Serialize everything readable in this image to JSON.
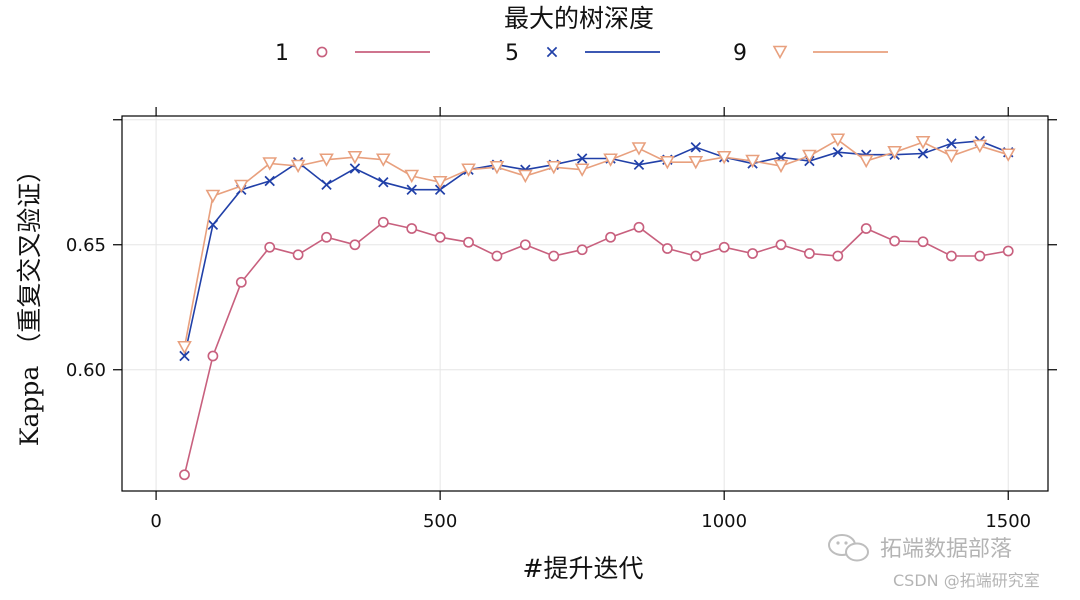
{
  "chart_data": {
    "type": "line",
    "legend": {
      "title": "最大的树深度",
      "placement": "top",
      "entries": [
        {
          "label": "1",
          "marker": "circle",
          "color": "#c8607e"
        },
        {
          "label": "5",
          "marker": "cross",
          "color": "#2140a8"
        },
        {
          "label": "9",
          "marker": "triangle-down",
          "color": "#e8a07e"
        }
      ]
    },
    "xlabel": "#提升迭代",
    "ylabel": "Kappa （重复交叉验证）",
    "xlim": [
      -60,
      1570
    ],
    "ylim": [
      0.5515,
      0.7015
    ],
    "x_ticks": [
      0,
      500,
      1000,
      1500
    ],
    "y_ticks": [
      0.6,
      0.65
    ],
    "x_tick_labels": [
      "0",
      "500",
      "1000",
      "1500"
    ],
    "y_tick_labels": [
      "0.60",
      "0.65"
    ],
    "grid": true,
    "x": [
      50,
      100,
      150,
      200,
      250,
      300,
      350,
      400,
      450,
      500,
      550,
      600,
      650,
      700,
      750,
      800,
      850,
      900,
      950,
      1000,
      1050,
      1100,
      1150,
      1200,
      1250,
      1300,
      1350,
      1400,
      1450,
      1500
    ],
    "series": [
      {
        "name": "1",
        "color": "#c8607e",
        "marker": "circle",
        "values": [
          0.558,
          0.6055,
          0.635,
          0.649,
          0.646,
          0.653,
          0.65,
          0.659,
          0.6565,
          0.653,
          0.651,
          0.6455,
          0.65,
          0.6455,
          0.648,
          0.653,
          0.657,
          0.6485,
          0.6455,
          0.649,
          0.6465,
          0.65,
          0.6465,
          0.6455,
          0.6565,
          0.6515,
          0.6512,
          0.6455,
          0.6455,
          0.6475
        ]
      },
      {
        "name": "5",
        "color": "#2140a8",
        "marker": "cross",
        "values": [
          0.6055,
          0.658,
          0.672,
          0.6755,
          0.683,
          0.674,
          0.6805,
          0.675,
          0.672,
          0.672,
          0.68,
          0.682,
          0.68,
          0.682,
          0.6845,
          0.6845,
          0.682,
          0.684,
          0.689,
          0.685,
          0.6825,
          0.685,
          0.6835,
          0.687,
          0.686,
          0.686,
          0.6865,
          0.6905,
          0.6915,
          0.687
        ]
      },
      {
        "name": "9",
        "color": "#e8a07e",
        "marker": "triangle-down",
        "values": [
          0.609,
          0.6695,
          0.6735,
          0.6825,
          0.6815,
          0.684,
          0.685,
          0.684,
          0.6775,
          0.675,
          0.68,
          0.681,
          0.6775,
          0.681,
          0.68,
          0.684,
          0.6885,
          0.683,
          0.683,
          0.685,
          0.6835,
          0.6815,
          0.6855,
          0.692,
          0.6835,
          0.687,
          0.691,
          0.6855,
          0.6895,
          0.686
        ]
      }
    ]
  },
  "watermark": {
    "brand": "拓端数据部落",
    "credit": "CSDN @拓端研究室"
  }
}
